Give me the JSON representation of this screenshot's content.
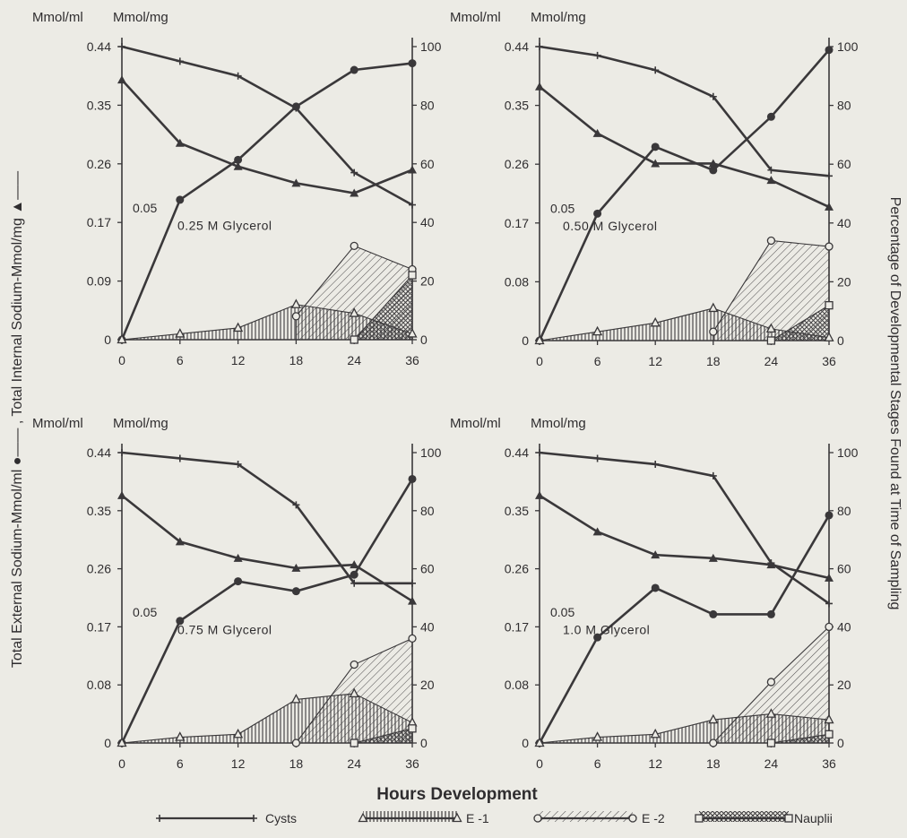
{
  "figure": {
    "x_axis_label": "Hours Development",
    "left_axis_label": "Total External Sodium-Mmol/ml ●—— , Total Internal Sodium-Mmol/mg ▲——",
    "right_axis_label": "Percentage of Developmental Stages Found at Time of Sampling",
    "left_unit": "Mmol/ml",
    "right_unit": "Mmol/mg"
  },
  "legend": [
    {
      "name": "Cysts",
      "marker": "plus"
    },
    {
      "name": "E -1",
      "marker": "triangle-open"
    },
    {
      "name": "E -2",
      "marker": "circle-open"
    },
    {
      "name": "Nauplii",
      "marker": "square-open"
    }
  ],
  "chart_data": [
    {
      "type": "line",
      "title": "0.25 M Glycerol",
      "annotation": "0.05",
      "x_ticks": [
        "0",
        "6",
        "12",
        "18",
        "24",
        "36"
      ],
      "y_left_ticks": [
        "0",
        "0.09",
        "0.17",
        "0.26",
        "0.35",
        "0.44"
      ],
      "y_right_ticks": [
        "0",
        "20",
        "40",
        "60",
        "80",
        "100"
      ],
      "y_left_lim": [
        0,
        0.44
      ],
      "y_right_lim": [
        0,
        100
      ],
      "series": [
        {
          "name": "Total External Sodium",
          "axis": "left",
          "marker": "dot",
          "values": [
            0.0,
            0.21,
            0.27,
            0.35,
            0.405,
            0.415
          ]
        },
        {
          "name": "Total Internal Sodium",
          "axis": "left",
          "marker": "triangle",
          "values": [
            0.39,
            0.295,
            0.26,
            0.235,
            0.22,
            0.255
          ]
        },
        {
          "name": "Cysts",
          "axis": "right",
          "marker": "plus",
          "values": [
            100,
            95,
            90,
            79,
            57,
            46
          ]
        },
        {
          "name": "E -1",
          "axis": "right",
          "marker": "triangle-open",
          "values": [
            0,
            2,
            4,
            12,
            9,
            2
          ]
        },
        {
          "name": "E -2",
          "axis": "right",
          "marker": "circle-open",
          "values": [
            null,
            null,
            null,
            8,
            32,
            24
          ]
        },
        {
          "name": "Nauplii",
          "axis": "right",
          "marker": "square-open",
          "values": [
            null,
            null,
            null,
            null,
            0,
            22
          ]
        }
      ]
    },
    {
      "type": "line",
      "title": "0.50 M Glycerol",
      "annotation": "0.05",
      "x_ticks": [
        "0",
        "6",
        "12",
        "18",
        "24",
        "36"
      ],
      "y_left_ticks": [
        "0",
        "0.08",
        "0.17",
        "0.26",
        "0.35",
        "0.44"
      ],
      "y_right_ticks": [
        "0",
        "20",
        "40",
        "60",
        "80",
        "100"
      ],
      "y_left_lim": [
        0,
        0.44
      ],
      "y_right_lim": [
        0,
        100
      ],
      "series": [
        {
          "name": "Total External Sodium",
          "axis": "left",
          "marker": "dot",
          "values": [
            0.0,
            0.19,
            0.29,
            0.255,
            0.335,
            0.435
          ]
        },
        {
          "name": "Total Internal Sodium",
          "axis": "left",
          "marker": "triangle",
          "values": [
            0.38,
            0.31,
            0.265,
            0.265,
            0.24,
            0.2
          ]
        },
        {
          "name": "Cysts",
          "axis": "right",
          "marker": "plus",
          "values": [
            100,
            97,
            92,
            83,
            58,
            56
          ]
        },
        {
          "name": "E -1",
          "axis": "right",
          "marker": "triangle-open",
          "values": [
            0,
            3,
            6,
            11,
            4,
            1
          ]
        },
        {
          "name": "E -2",
          "axis": "right",
          "marker": "circle-open",
          "values": [
            null,
            null,
            null,
            3,
            34,
            32
          ]
        },
        {
          "name": "Nauplii",
          "axis": "right",
          "marker": "square-open",
          "values": [
            null,
            null,
            null,
            null,
            0,
            12
          ]
        }
      ]
    },
    {
      "type": "line",
      "title": "0.75 M Glycerol",
      "annotation": "0.05",
      "x_ticks": [
        "0",
        "6",
        "12",
        "18",
        "24",
        "36"
      ],
      "y_left_ticks": [
        "0",
        "0.08",
        "0.17",
        "0.26",
        "0.35",
        "0.44"
      ],
      "y_right_ticks": [
        "0",
        "20",
        "40",
        "60",
        "80",
        "100"
      ],
      "y_left_lim": [
        0,
        0.44
      ],
      "y_right_lim": [
        0,
        100
      ],
      "series": [
        {
          "name": "Total External Sodium",
          "axis": "left",
          "marker": "dot",
          "values": [
            0.0,
            0.185,
            0.245,
            0.23,
            0.255,
            0.4
          ]
        },
        {
          "name": "Total Internal Sodium",
          "axis": "left",
          "marker": "triangle",
          "values": [
            0.375,
            0.305,
            0.28,
            0.265,
            0.27,
            0.215
          ]
        },
        {
          "name": "Cysts",
          "axis": "right",
          "marker": "plus",
          "values": [
            100,
            98,
            96,
            82,
            55,
            55
          ]
        },
        {
          "name": "E -1",
          "axis": "right",
          "marker": "triangle-open",
          "values": [
            0,
            2,
            3,
            15,
            17,
            7
          ]
        },
        {
          "name": "E -2",
          "axis": "right",
          "marker": "circle-open",
          "values": [
            null,
            null,
            null,
            0,
            27,
            36
          ]
        },
        {
          "name": "Nauplii",
          "axis": "right",
          "marker": "square-open",
          "values": [
            null,
            null,
            null,
            null,
            0,
            5
          ]
        }
      ]
    },
    {
      "type": "line",
      "title": "1.0 M Glycerol",
      "annotation": "0.05",
      "x_ticks": [
        "0",
        "6",
        "12",
        "18",
        "24",
        "36"
      ],
      "y_left_ticks": [
        "0",
        "0.08",
        "0.17",
        "0.26",
        "0.35",
        "0.44"
      ],
      "y_right_ticks": [
        "0",
        "20",
        "40",
        "60",
        "80",
        "100"
      ],
      "y_left_lim": [
        0,
        0.44
      ],
      "y_right_lim": [
        0,
        100
      ],
      "series": [
        {
          "name": "Total External Sodium",
          "axis": "left",
          "marker": "dot",
          "values": [
            0.0,
            0.16,
            0.235,
            0.195,
            0.195,
            0.345
          ]
        },
        {
          "name": "Total Internal Sodium",
          "axis": "left",
          "marker": "triangle",
          "values": [
            0.375,
            0.32,
            0.285,
            0.28,
            0.27,
            0.25
          ]
        },
        {
          "name": "Cysts",
          "axis": "right",
          "marker": "plus",
          "values": [
            100,
            98,
            96,
            92,
            62,
            48
          ]
        },
        {
          "name": "E -1",
          "axis": "right",
          "marker": "triangle-open",
          "values": [
            0,
            2,
            3,
            8,
            10,
            8
          ]
        },
        {
          "name": "E -2",
          "axis": "right",
          "marker": "circle-open",
          "values": [
            null,
            null,
            null,
            0,
            21,
            40
          ]
        },
        {
          "name": "Nauplii",
          "axis": "right",
          "marker": "square-open",
          "values": [
            null,
            null,
            null,
            null,
            0,
            3
          ]
        }
      ]
    }
  ]
}
